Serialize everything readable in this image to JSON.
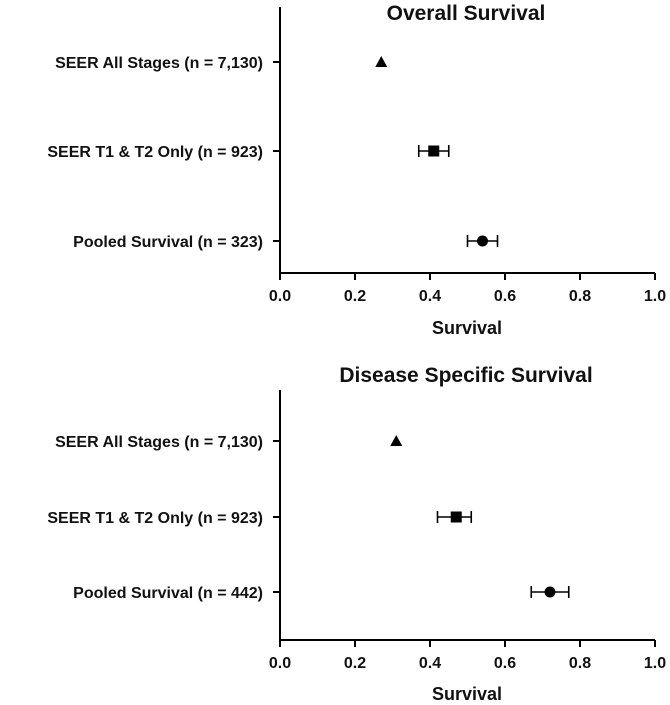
{
  "chart_data": [
    {
      "type": "scatter",
      "subtype": "forest-plot",
      "title": "Overall Survival",
      "xlabel": "Survival",
      "ylabel": "",
      "xlim": [
        0.0,
        1.0
      ],
      "xticks": [
        "0.0",
        "0.2",
        "0.4",
        "0.6",
        "0.8",
        "1.0"
      ],
      "grid": false,
      "rows": [
        {
          "label": "SEER All Stages (n = 7,130)",
          "value": 0.27,
          "ci": null,
          "marker": "triangle"
        },
        {
          "label": "SEER T1 & T2 Only  (n = 923)",
          "value": 0.41,
          "ci": [
            0.37,
            0.45
          ],
          "marker": "square"
        },
        {
          "label": "Pooled Survival (n = 323)",
          "value": 0.54,
          "ci": [
            0.5,
            0.58
          ],
          "marker": "circle"
        }
      ]
    },
    {
      "type": "scatter",
      "subtype": "forest-plot",
      "title": "Disease Specific Survival",
      "xlabel": "Survival",
      "ylabel": "",
      "xlim": [
        0.0,
        1.0
      ],
      "xticks": [
        "0.0",
        "0.2",
        "0.4",
        "0.6",
        "0.8",
        "1.0"
      ],
      "grid": false,
      "rows": [
        {
          "label": "SEER All Stages (n = 7,130)",
          "value": 0.31,
          "ci": null,
          "marker": "triangle"
        },
        {
          "label": "SEER T1 & T2 Only (n = 923)",
          "value": 0.47,
          "ci": [
            0.42,
            0.51
          ],
          "marker": "square"
        },
        {
          "label": "Pooled Survival (n = 442)",
          "value": 0.72,
          "ci": [
            0.67,
            0.77
          ],
          "marker": "circle"
        }
      ]
    }
  ]
}
